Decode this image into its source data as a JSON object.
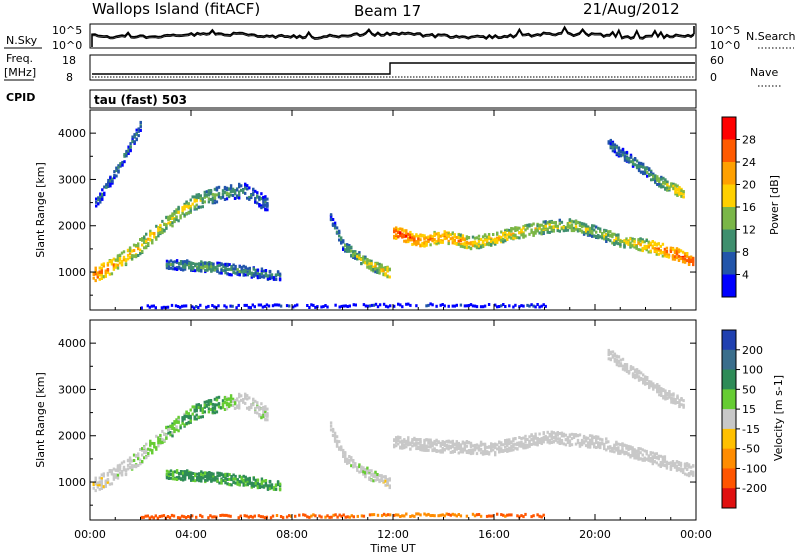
{
  "header": {
    "title": "Wallops Island (fitACF)",
    "beam": "Beam 17",
    "date": "21/Aug/2012"
  },
  "noise_panel": {
    "left_label": "N.Sky",
    "right_label": "N.Search",
    "left_ticks": [
      "10^5",
      "10^0"
    ],
    "right_ticks": [
      "10^5",
      "10^0"
    ]
  },
  "freq_panel": {
    "left_label_line1": "Freq.",
    "left_label_line2": "[MHz]",
    "left_ticks": [
      "18",
      "8"
    ],
    "right_label": "Nave",
    "right_ticks": [
      "60",
      "0"
    ]
  },
  "cpid_panel": {
    "label": "CPID",
    "value_text": "tau (fast) 503"
  },
  "power_panel": {
    "ylabel": "Slant Range [km]",
    "colorbar_label": "Power [dB]",
    "colorbar_ticks": [
      "28",
      "24",
      "20",
      "16",
      "12",
      "8",
      "4"
    ],
    "colorbar_colors": [
      "#ff0000",
      "#ff5a00",
      "#ffa000",
      "#ffd000",
      "#7ab648",
      "#3f8f6e",
      "#2255aa",
      "#0000ff"
    ]
  },
  "velocity_panel": {
    "ylabel": "Slant Range [km]",
    "colorbar_label": "Velocity [m s-1]",
    "colorbar_ticks": [
      "200",
      "100",
      "50",
      "15",
      "-15",
      "-50",
      "-100",
      "-200"
    ],
    "colorbar_colors": [
      "#2040b0",
      "#3a6e8c",
      "#2e8b57",
      "#66cc33",
      "#c8c8c8",
      "#ffc000",
      "#ff8c00",
      "#ff5500",
      "#e01010"
    ]
  },
  "x_axis": {
    "label": "Time UT",
    "ticks": [
      "00:00",
      "04:00",
      "08:00",
      "12:00",
      "16:00",
      "20:00",
      "00:00"
    ]
  },
  "chart_data": [
    {
      "type": "heatmap",
      "title": "Power",
      "xlabel": "Time UT",
      "ylabel": "Slant Range [km]",
      "colorbar_label": "Power [dB]",
      "xlim": [
        0,
        24
      ],
      "ylim": [
        180,
        4500
      ],
      "x_ticks": [
        "00:00",
        "04:00",
        "08:00",
        "12:00",
        "16:00",
        "20:00",
        "00:00"
      ],
      "y_ticks": [
        1000,
        2000,
        3000,
        4000
      ],
      "zlim": [
        0,
        30
      ],
      "features": [
        {
          "name": "rising echo band",
          "points": [
            [
              0.1,
              950,
              24
            ],
            [
              1.0,
              1200,
              20
            ],
            [
              2.0,
              1600,
              18
            ],
            [
              3.0,
              2100,
              16
            ],
            [
              4.0,
              2500,
              16
            ],
            [
              5.0,
              2700,
              12
            ],
            [
              6.0,
              2800,
              10
            ],
            [
              7.0,
              2500,
              8
            ]
          ]
        },
        {
          "name": "lower echo band",
          "points": [
            [
              3.0,
              1200,
              10
            ],
            [
              4.5,
              1150,
              12
            ],
            [
              6.0,
              1050,
              10
            ],
            [
              7.5,
              950,
              8
            ]
          ]
        },
        {
          "name": "early high-range streaks",
          "points": [
            [
              0.2,
              2500,
              8
            ],
            [
              1.0,
              3200,
              8
            ],
            [
              2.0,
              4200,
              10
            ]
          ]
        },
        {
          "name": "pre-noon band",
          "points": [
            [
              9.5,
              2200,
              8
            ],
            [
              10.0,
              1600,
              12
            ],
            [
              11.0,
              1200,
              16
            ],
            [
              11.9,
              1000,
              20
            ]
          ]
        },
        {
          "name": "post-noon band",
          "points": [
            [
              12.0,
              1900,
              26
            ],
            [
              13.0,
              1700,
              24
            ],
            [
              14.0,
              1800,
              22
            ],
            [
              15.0,
              1650,
              20
            ],
            [
              16.0,
              1750,
              18
            ],
            [
              17.0,
              1900,
              18
            ],
            [
              18.0,
              2000,
              16
            ],
            [
              19.0,
              2050,
              16
            ],
            [
              20.0,
              1900,
              14
            ],
            [
              21.0,
              1700,
              16
            ],
            [
              22.0,
              1600,
              20
            ],
            [
              23.0,
              1450,
              24
            ],
            [
              23.9,
              1250,
              26
            ]
          ]
        },
        {
          "name": "late high-range band",
          "points": [
            [
              20.5,
              3800,
              8
            ],
            [
              21.5,
              3400,
              10
            ],
            [
              22.5,
              3000,
              14
            ],
            [
              23.5,
              2700,
              20
            ]
          ]
        },
        {
          "name": "near-range sporadic",
          "points": [
            [
              2.0,
              280,
              4
            ],
            [
              10.0,
              300,
              4
            ],
            [
              14.0,
              320,
              4
            ],
            [
              18.0,
              300,
              4
            ]
          ]
        }
      ]
    },
    {
      "type": "heatmap",
      "title": "Velocity",
      "xlabel": "Time UT",
      "ylabel": "Slant Range [km]",
      "colorbar_label": "Velocity [m s-1]",
      "xlim": [
        0,
        24
      ],
      "ylim": [
        180,
        4500
      ],
      "x_ticks": [
        "00:00",
        "04:00",
        "08:00",
        "12:00",
        "16:00",
        "20:00",
        "00:00"
      ],
      "y_ticks": [
        1000,
        2000,
        3000,
        4000
      ],
      "zlim": [
        -200,
        200
      ],
      "features": [
        {
          "name": "rising echo band",
          "points": [
            [
              0.1,
              950,
              -10
            ],
            [
              1.0,
              1200,
              0
            ],
            [
              2.0,
              1600,
              10
            ],
            [
              3.0,
              2100,
              20
            ],
            [
              4.0,
              2500,
              30
            ],
            [
              5.0,
              2700,
              40
            ],
            [
              6.0,
              2800,
              0
            ],
            [
              7.0,
              2500,
              5
            ]
          ]
        },
        {
          "name": "lower echo band",
          "points": [
            [
              3.0,
              1200,
              35
            ],
            [
              4.5,
              1150,
              40
            ],
            [
              6.0,
              1050,
              35
            ],
            [
              7.5,
              950,
              30
            ]
          ]
        },
        {
          "name": "pre-noon band",
          "points": [
            [
              9.5,
              2200,
              0
            ],
            [
              10.0,
              1600,
              0
            ],
            [
              11.0,
              1200,
              5
            ],
            [
              11.9,
              1000,
              -5
            ]
          ]
        },
        {
          "name": "post-noon band",
          "points": [
            [
              12.0,
              1900,
              0
            ],
            [
              14.0,
              1800,
              0
            ],
            [
              16.0,
              1750,
              0
            ],
            [
              18.0,
              2000,
              0
            ],
            [
              20.0,
              1900,
              0
            ],
            [
              22.0,
              1600,
              0
            ],
            [
              23.9,
              1250,
              0
            ]
          ]
        },
        {
          "name": "late high-range band",
          "points": [
            [
              20.5,
              3800,
              0
            ],
            [
              21.5,
              3400,
              0
            ],
            [
              22.5,
              3000,
              0
            ],
            [
              23.5,
              2700,
              0
            ]
          ]
        },
        {
          "name": "near-range sporadic",
          "points": [
            [
              2.0,
              280,
              -100
            ],
            [
              10.0,
              300,
              -80
            ],
            [
              14.0,
              320,
              -60
            ],
            [
              18.0,
              300,
              -100
            ]
          ]
        }
      ]
    }
  ]
}
